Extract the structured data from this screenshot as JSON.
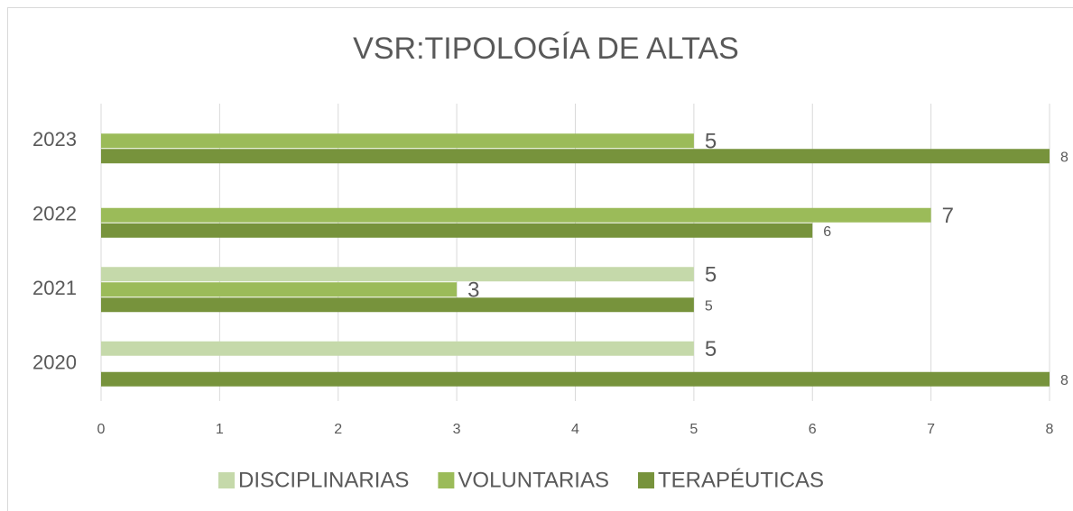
{
  "chart_data": {
    "type": "hbar",
    "title": "VSR:TIPOLOGÍA DE ALTAS",
    "categories": [
      "2020",
      "2021",
      "2022",
      "2023"
    ],
    "series": [
      {
        "name": "DISCIPLINARIAS",
        "color": "#c5d9aa",
        "values": [
          5,
          5,
          null,
          null
        ]
      },
      {
        "name": "VOLUNTARIAS",
        "color": "#9bbb59",
        "values": [
          null,
          3,
          7,
          5
        ]
      },
      {
        "name": "TERAPÉUTICAS",
        "color": "#77933c",
        "values": [
          8,
          5,
          6,
          8
        ]
      }
    ],
    "xlim": [
      0,
      8
    ],
    "xticks": [
      0,
      1,
      2,
      3,
      4,
      5,
      6,
      7,
      8
    ],
    "grid": true,
    "legend": "bottom"
  }
}
